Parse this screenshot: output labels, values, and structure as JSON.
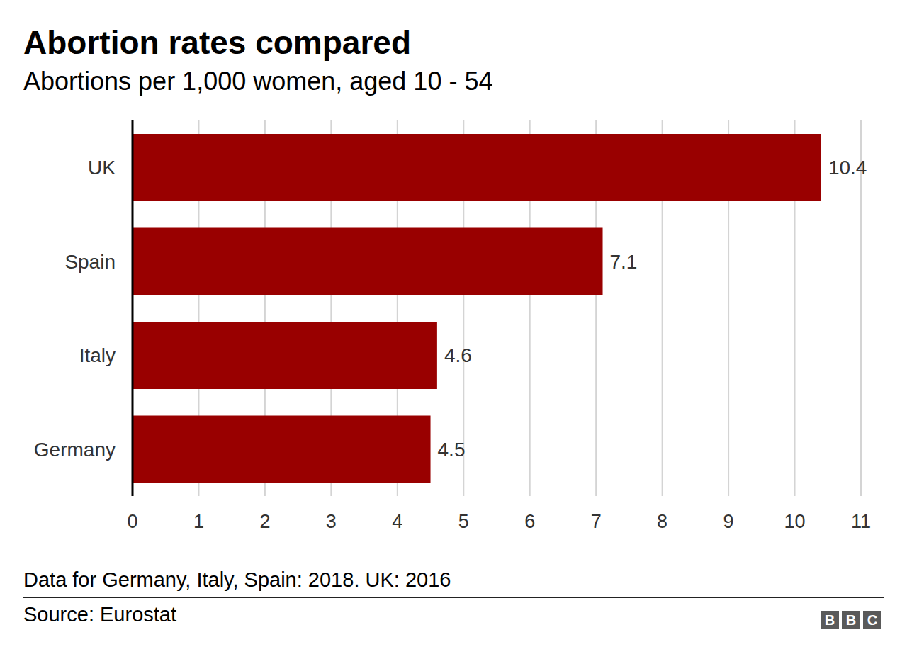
{
  "chart_data": {
    "type": "bar",
    "orientation": "horizontal",
    "title": "Abortion rates compared",
    "subtitle": "Abortions per 1,000 women, aged 10 - 54",
    "categories": [
      "UK",
      "Spain",
      "Italy",
      "Germany"
    ],
    "values": [
      10.4,
      7.1,
      4.6,
      4.5
    ],
    "color": "#990000",
    "xlim": [
      0,
      11
    ],
    "xticks": [
      0,
      1,
      2,
      3,
      4,
      5,
      6,
      7,
      8,
      9,
      10,
      11
    ],
    "grid": true,
    "data_labels": true,
    "footnote": "Data for Germany, Italy, Spain: 2018. UK: 2016",
    "source": "Source: Eurostat",
    "logo": "BBC"
  }
}
